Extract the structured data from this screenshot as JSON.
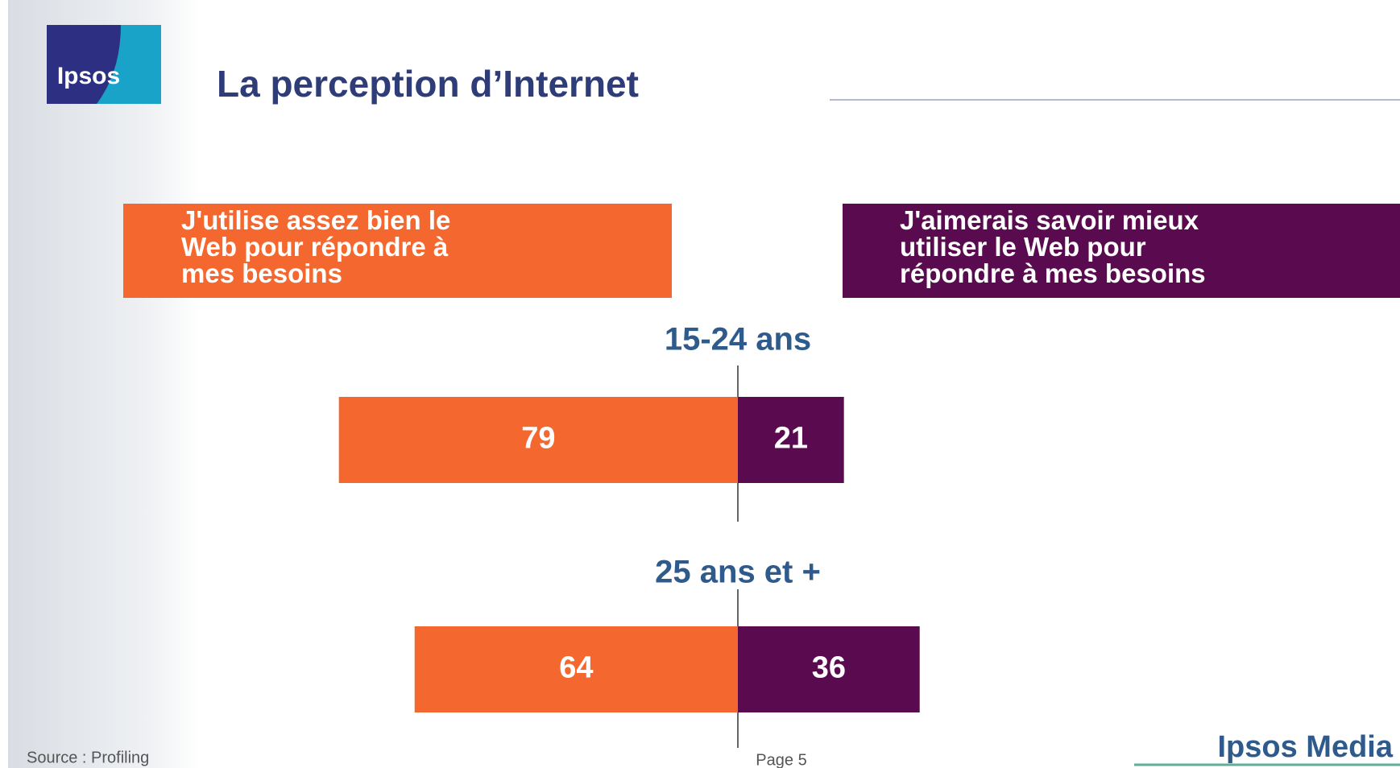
{
  "logo": "Ipsos",
  "footer": {
    "source": "Source : Profiling",
    "page": "Page 5",
    "brand": "Ipsos Media"
  },
  "chart_data": {
    "type": "diverging_bar",
    "title": "La perception d’Internet",
    "categories": [
      "15-24 ans",
      "25 ans et +"
    ],
    "series": [
      {
        "name": "J'utilise assez bien le\nWeb pour répondre à\nmes besoins",
        "color": "#f4682f",
        "values": [
          79,
          64
        ]
      },
      {
        "name": "J'aimerais savoir mieux\nutiliser le Web pour\nrépondre à mes besoins",
        "color": "#5a0a4e",
        "values": [
          21,
          36
        ]
      }
    ]
  }
}
